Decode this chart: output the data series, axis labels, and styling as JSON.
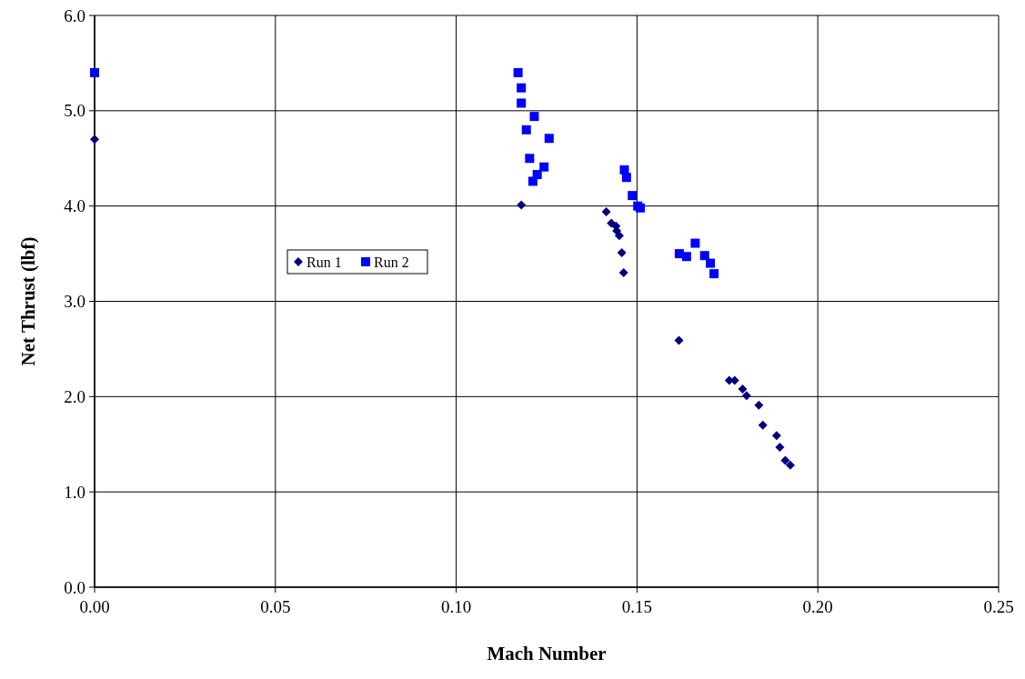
{
  "chart_data": {
    "type": "scatter",
    "xlabel": "Mach Number",
    "ylabel": "Net Thrust (lbf)",
    "xlim": [
      0,
      0.25
    ],
    "xticks": [
      {
        "value": 0,
        "label": "0.00"
      },
      0.05,
      {
        "value": 0.1,
        "label": "0.10"
      },
      0.15,
      {
        "value": 0.2,
        "label": "0.20"
      },
      0.25
    ],
    "ylim": [
      0,
      6
    ],
    "yticks": [
      {
        "value": 0,
        "label": "0.0"
      },
      {
        "value": 1,
        "label": "1.0"
      },
      {
        "value": 2,
        "label": "2.0"
      },
      {
        "value": 3,
        "label": "3.0"
      },
      {
        "value": 4,
        "label": "4.0"
      },
      {
        "value": 5,
        "label": "5.0"
      },
      {
        "value": 6,
        "label": "6.0"
      }
    ],
    "grid": true,
    "legend": "center left",
    "series": [
      {
        "name": "Run 1",
        "color": "#000080",
        "marker": "diamond",
        "x": [
          0,
          0.118,
          0.1415,
          0.1429,
          0.1442,
          0.1444,
          0.1451,
          0.1458,
          0.1463,
          0.1616,
          0.1755,
          0.177,
          0.1792,
          0.1803,
          0.1837,
          0.1848,
          0.1886,
          0.1895,
          0.191,
          0.1924
        ],
        "values": [
          4.7,
          4.01,
          3.94,
          3.82,
          3.79,
          3.74,
          3.69,
          3.51,
          3.3,
          2.59,
          2.17,
          2.17,
          2.08,
          2.01,
          1.91,
          1.7,
          1.59,
          1.47,
          1.33,
          1.28
        ]
      },
      {
        "name": "Run 2",
        "color": "#0000ff",
        "marker": "square",
        "x": [
          0,
          0.1171,
          0.118,
          0.118,
          0.1216,
          0.1194,
          0.1257,
          0.1203,
          0.1243,
          0.1224,
          0.1212,
          0.1465,
          0.1471,
          0.1487,
          0.1502,
          0.1509,
          0.1617,
          0.1637,
          0.1661,
          0.1687,
          0.1703,
          0.1713
        ],
        "values": [
          5.4,
          5.4,
          5.24,
          5.08,
          4.94,
          4.8,
          4.71,
          4.5,
          4.41,
          4.33,
          4.26,
          4.38,
          4.3,
          4.11,
          4.0,
          3.98,
          3.5,
          3.47,
          3.61,
          3.48,
          3.4,
          3.29
        ]
      }
    ]
  }
}
